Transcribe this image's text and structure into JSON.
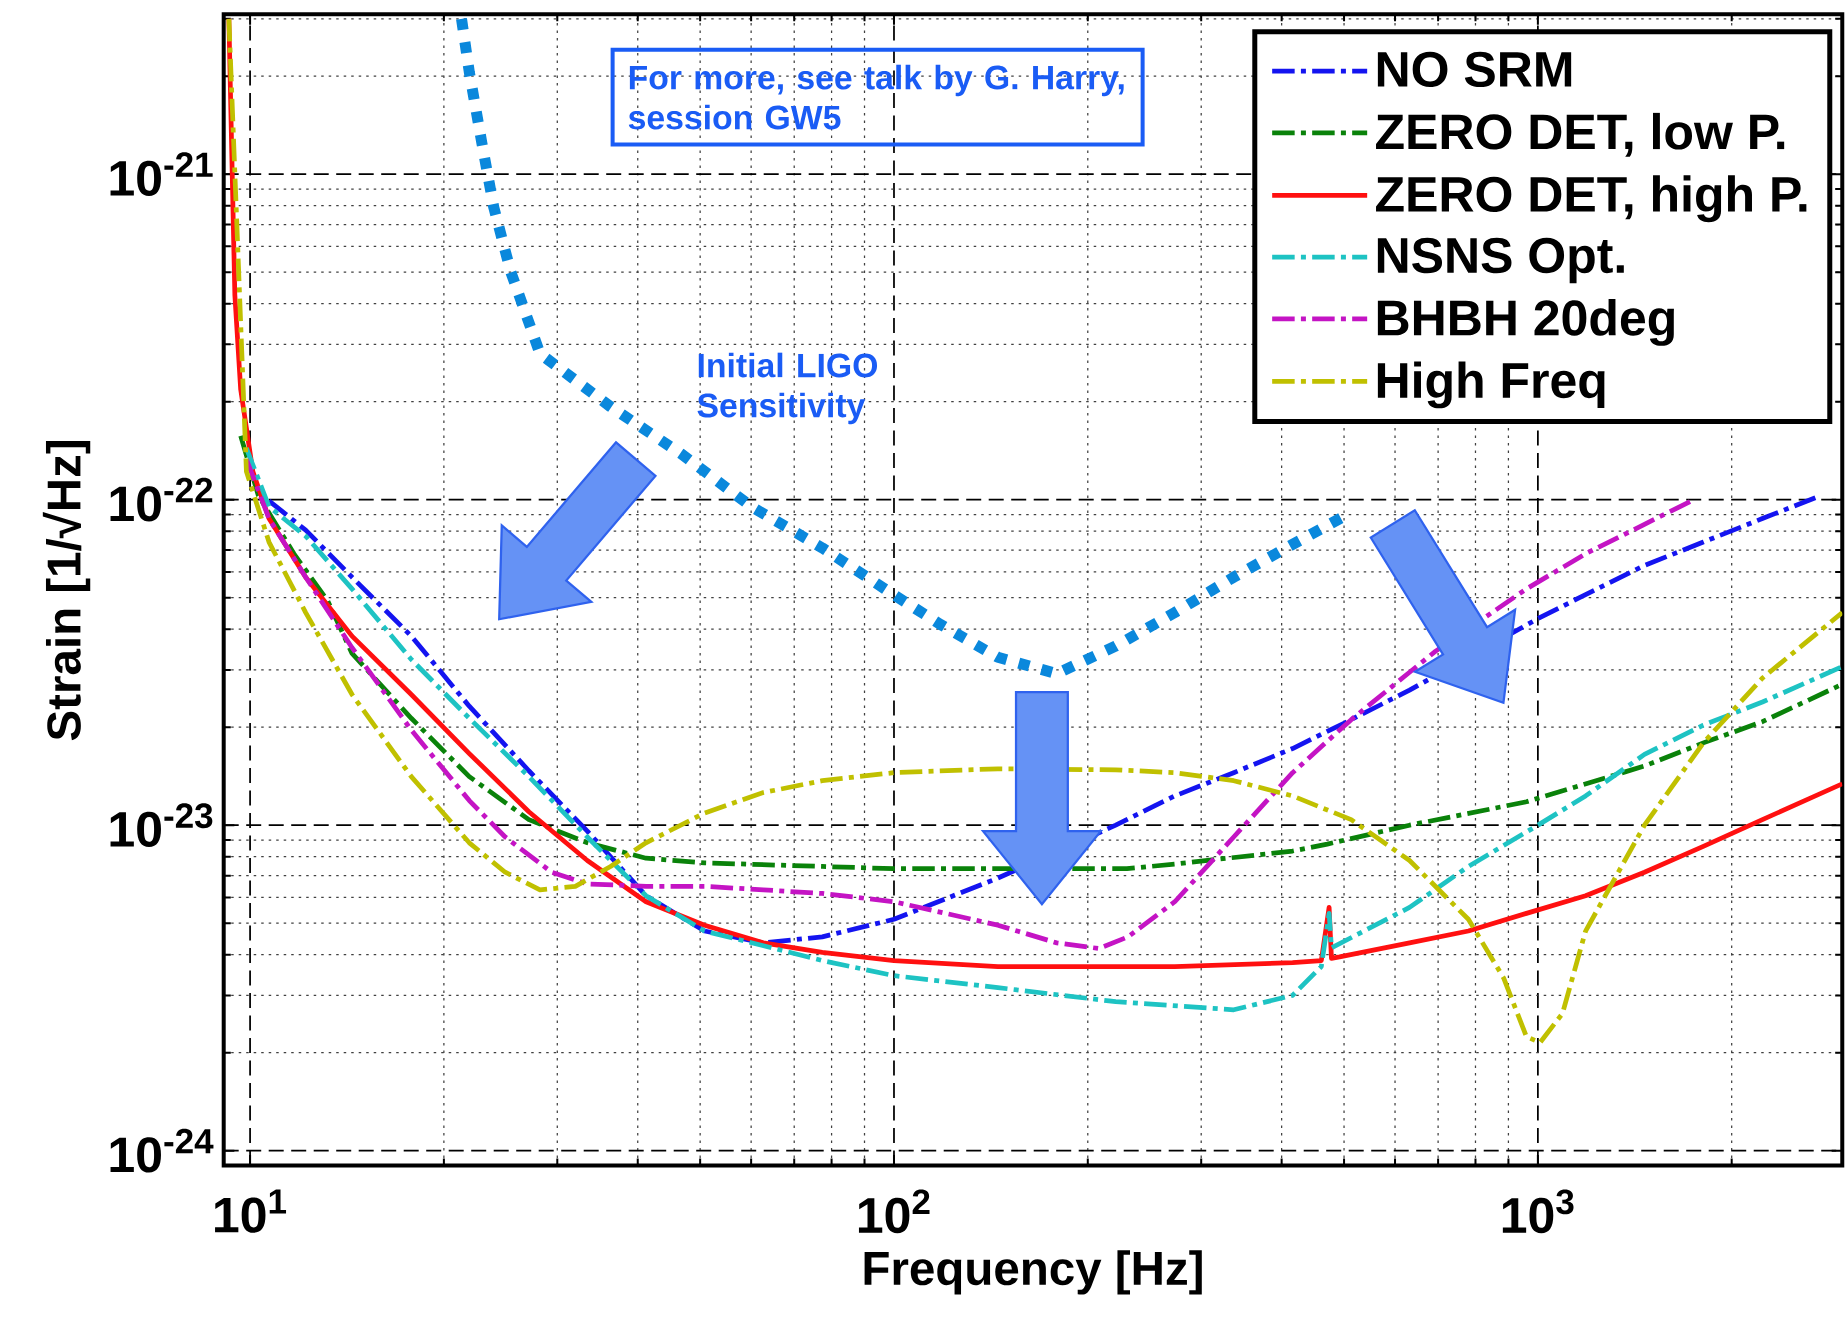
{
  "chart_data": {
    "type": "line",
    "log": "xy",
    "grid": true,
    "legend": "top right",
    "xlabel": "Frequency [Hz]",
    "ylabel": "Strain [1/√Hz]",
    "xlim": [
      9.1,
      2970
    ],
    "ylim": [
      9e-25,
      3.1e-21
    ],
    "xticks": [
      {
        "value": 10,
        "label": "10$^{1}$"
      },
      {
        "value": 100,
        "label": "10$^{2}$"
      },
      {
        "value": 1000,
        "label": "10$^{3}$"
      }
    ],
    "yticks": [
      {
        "value": 1e-24,
        "label": "10$^{-24}$"
      },
      {
        "value": 1e-23,
        "label": "10$^{-23}$"
      },
      {
        "value": 1e-22,
        "label": "10$^{-22}$"
      },
      {
        "value": 1e-21,
        "label": "10$^{-21}$"
      }
    ],
    "annotations": [
      "For more, see talk by G. Harry, session GW5",
      "Initial LIGO Sensitivity"
    ],
    "series": [
      {
        "name": "NO SRM",
        "color": "#1414f0",
        "line_style": "dashdot",
        "x": [
          10.7,
          12.2,
          14.4,
          17.8,
          21.9,
          27.1,
          33.4,
          41.2,
          50.8,
          62.7,
          77.4,
          100,
          145,
          221,
          273,
          337,
          416,
          513,
          632,
          1000,
          1186,
          1464,
          1807,
          2232,
          2754
        ],
        "values": [
          9.92e-23,
          8.06e-23,
          5.78e-23,
          3.81e-23,
          2.32e-23,
          1.47e-23,
          9.59e-24,
          6.07e-24,
          4.73e-24,
          4.35e-24,
          4.54e-24,
          5.14e-24,
          6.88e-24,
          1e-23,
          1.23e-23,
          1.45e-23,
          1.72e-23,
          2.11e-23,
          2.6e-23,
          4.31e-23,
          5.11e-23,
          6.28e-23,
          7.41e-23,
          8.75e-23,
          1.03e-22
        ]
      },
      {
        "name": "ZERO DET, low P.",
        "color": "#0a820a",
        "line_style": "dashdot",
        "x": [
          9.67,
          10.3,
          11.7,
          13.2,
          14.4,
          17.8,
          21.9,
          27.1,
          33.4,
          41.2,
          50.8,
          77.4,
          100,
          230,
          273,
          416,
          471,
          632,
          960,
          1464,
          1807,
          2232,
          2970
        ],
        "values": [
          1.57e-22,
          1.03e-22,
          6.82e-23,
          4.89e-23,
          3.37e-23,
          2.13e-23,
          1.41e-23,
          1.04e-23,
          8.83e-24,
          7.92e-24,
          7.66e-24,
          7.47e-24,
          7.35e-24,
          7.35e-24,
          7.6e-24,
          8.33e-24,
          8.75e-24,
          1e-23,
          1.18e-23,
          1.52e-23,
          1.79e-23,
          2.08e-23,
          2.71e-23
        ]
      },
      {
        "name": "ZERO DET, high P.",
        "color": "#ff1010",
        "line_style": "solid",
        "x": [
          9.27,
          9.47,
          9.67,
          10.1,
          10.7,
          12.2,
          14.4,
          17.8,
          21.9,
          27.1,
          33.4,
          41.2,
          50.8,
          62.7,
          77.4,
          100,
          145,
          273,
          416,
          461,
          474,
          478,
          492,
          632,
          780,
          960,
          1186,
          1464,
          1807,
          2232,
          2970
        ],
        "values": [
          3e-21,
          4.25e-22,
          2.18e-22,
          1.22e-22,
          8.75e-23,
          5.78e-23,
          3.81e-23,
          2.52e-23,
          1.66e-23,
          1.1e-23,
          7.79e-24,
          5.82e-24,
          4.93e-24,
          4.35e-24,
          4.07e-24,
          3.84e-24,
          3.68e-24,
          3.68e-24,
          3.78e-24,
          3.84e-24,
          5.59e-24,
          3.9e-24,
          3.94e-24,
          4.35e-24,
          4.73e-24,
          5.36e-24,
          6.07e-24,
          7.17e-24,
          8.61e-24,
          1.04e-23,
          1.34e-23
        ]
      },
      {
        "name": "NSNS Opt.",
        "color": "#1ec3c3",
        "line_style": "dashdot",
        "x": [
          9.87,
          10.7,
          12.2,
          14.4,
          17.8,
          21.9,
          27.1,
          33.4,
          41.2,
          50.8,
          77.4,
          100,
          145,
          221,
          337,
          416,
          461,
          474,
          478,
          632,
          780,
          1000,
          1186,
          1464,
          1807,
          2232,
          2970
        ],
        "values": [
          1.44e-22,
          9.51e-23,
          7.73e-23,
          5.32e-23,
          3.23e-23,
          2.13e-23,
          1.41e-23,
          9.2e-24,
          6.07e-24,
          4.73e-24,
          3.84e-24,
          3.45e-24,
          3.17e-24,
          2.87e-24,
          2.71e-24,
          3e-24,
          3.68e-24,
          5.36e-24,
          4.2e-24,
          5.59e-24,
          7.47e-24,
          1e-23,
          1.23e-23,
          1.65e-23,
          2.03e-23,
          2.39e-23,
          3.07e-23
        ]
      },
      {
        "name": "BHBH 20deg",
        "color": "#c414c4",
        "line_style": "dashdot",
        "x": [
          9.87,
          10.7,
          12.2,
          14.4,
          17.8,
          21.9,
          24.9,
          29.4,
          33.4,
          41.2,
          50.8,
          62.7,
          77.4,
          100,
          145,
          179,
          208,
          231,
          273,
          337,
          416,
          513,
          632,
          693,
          960,
          1186,
          1464,
          1734
        ],
        "values": [
          1.33e-22,
          8.75e-23,
          5.78e-23,
          3.51e-23,
          1.96e-23,
          1.19e-23,
          9.2e-24,
          7.17e-24,
          6.6e-24,
          6.49e-24,
          6.49e-24,
          6.33e-24,
          6.17e-24,
          5.82e-24,
          4.93e-24,
          4.35e-24,
          4.18e-24,
          4.54e-24,
          5.82e-24,
          9.2e-24,
          1.45e-23,
          2.11e-23,
          2.95e-23,
          3.42e-23,
          5.32e-23,
          6.82e-23,
          8.4e-23,
          9.92e-23
        ]
      },
      {
        "name": "High Freq",
        "color": "#c0c000",
        "line_style": "dashdot",
        "x": [
          9.27,
          9.87,
          10.7,
          12.2,
          14.4,
          17.8,
          21.9,
          24.9,
          28.2,
          32.0,
          36.3,
          41.2,
          50.8,
          62.7,
          77.4,
          100,
          145,
          221,
          273,
          337,
          416,
          513,
          632,
          780,
          885,
          960,
          1008,
          1092,
          1186,
          1464,
          1807,
          2232,
          2970
        ],
        "values": [
          3e-21,
          1.22e-22,
          7.41e-23,
          4.5e-23,
          2.52e-23,
          1.41e-23,
          8.83e-24,
          7.17e-24,
          6.33e-24,
          6.49e-24,
          7.47e-24,
          8.83e-24,
          1.09e-23,
          1.26e-23,
          1.37e-23,
          1.45e-23,
          1.49e-23,
          1.48e-23,
          1.45e-23,
          1.37e-23,
          1.23e-23,
          1.04e-23,
          7.79e-24,
          5.14e-24,
          3.39e-24,
          2.24e-24,
          2.15e-24,
          2.64e-24,
          4.73e-24,
          1e-23,
          1.79e-23,
          2.83e-23,
          4.5e-23
        ]
      },
      {
        "color": "#0a88dc",
        "line_style": "dotted",
        "x": [
          21.3,
          21.9,
          22.9,
          23.9,
          25.4,
          28.2,
          36.3,
          46.8,
          60.1,
          77.4,
          100,
          118,
          145,
          179,
          221,
          273,
          337,
          416,
          513
        ],
        "values": [
          3e-21,
          2.06e-21,
          1.25e-21,
          7.92e-22,
          5.01e-22,
          2.81e-22,
          1.93e-22,
          1.38e-22,
          9.51e-23,
          7.11e-23,
          5.1e-23,
          4.14e-23,
          3.28e-23,
          2.92e-23,
          3.55e-23,
          4.5e-23,
          5.78e-23,
          7.29e-23,
          9.13e-23
        ]
      }
    ]
  }
}
